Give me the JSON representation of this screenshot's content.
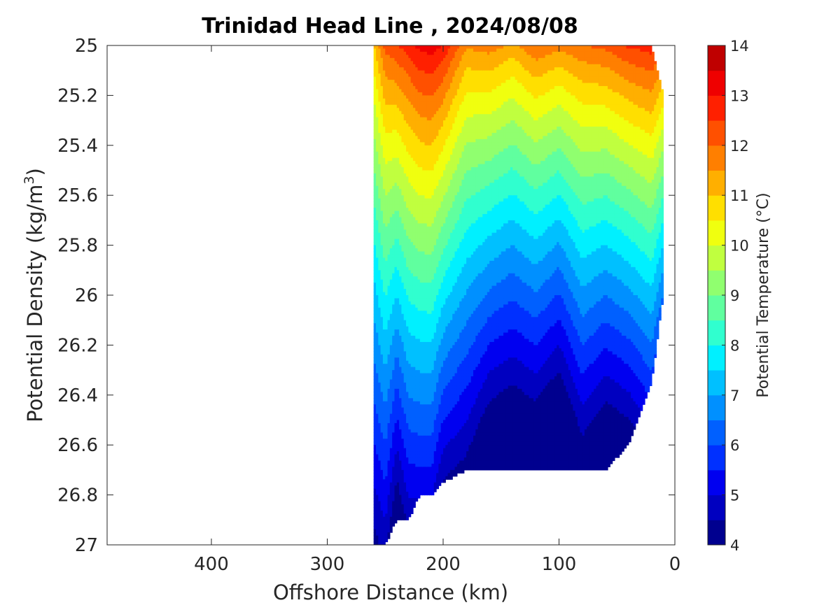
{
  "chart_data": {
    "type": "contour",
    "title": "Trinidad Head Line , 2024/08/08",
    "xlabel": "Offshore Distance (km)",
    "ylabel_text": "Potential Density (kg/m",
    "ylabel_sup": "3",
    "ylabel_close": ")",
    "colorbar_label": "Potential Temperature (°C)",
    "xlim": [
      490,
      0
    ],
    "ylim": [
      25,
      27
    ],
    "x_ticks": [
      "400",
      "300",
      "200",
      "100",
      "0"
    ],
    "x_tick_values": [
      400,
      300,
      200,
      100,
      0
    ],
    "y_ticks": [
      "25",
      "25.2",
      "25.4",
      "25.6",
      "25.8",
      "26",
      "26.2",
      "26.4",
      "26.6",
      "26.8",
      "27"
    ],
    "y_tick_values": [
      25,
      25.2,
      25.4,
      25.6,
      25.8,
      26,
      26.2,
      26.4,
      26.6,
      26.8,
      27
    ],
    "colorbar_ticks": [
      "14",
      "13",
      "12",
      "11",
      "10",
      "9",
      "8",
      "7",
      "6",
      "5",
      "4"
    ],
    "colorbar_tick_values": [
      14,
      13,
      12,
      11,
      10,
      9,
      8,
      7,
      6,
      5,
      4
    ],
    "clim": [
      4,
      14
    ],
    "level_step": 0.5,
    "colormap": [
      "#00008f",
      "#0000c0",
      "#0000f0",
      "#0030ff",
      "#0060ff",
      "#0090ff",
      "#00c0ff",
      "#00f0ff",
      "#30ffcf",
      "#60ff9f",
      "#90ff6f",
      "#c0ff3f",
      "#f0ff0f",
      "#ffdf00",
      "#ffaf00",
      "#ff7f00",
      "#ff5000",
      "#ff2000",
      "#ef0000",
      "#bf0000"
    ],
    "grid": false,
    "stations_x": [
      260,
      250,
      240,
      230,
      220,
      210,
      200,
      180,
      160,
      140,
      120,
      100,
      80,
      60,
      40,
      20,
      10
    ],
    "surface_temperature": [
      11.0,
      12.2,
      12.5,
      12.8,
      13.2,
      13.3,
      13.0,
      11.6,
      11.8,
      11.4,
      12.0,
      11.7,
      12.0,
      12.2,
      12.6,
      12.8,
      12.2
    ],
    "depth_scale": [
      1.0,
      0.95,
      1.1,
      1.0,
      1.0,
      1.0,
      1.1,
      1.15,
      1.3,
      1.35,
      1.3,
      1.4,
      1.2,
      1.3,
      1.25,
      1.15,
      1.3
    ],
    "bottom_density": [
      27.0,
      27.0,
      26.9,
      26.9,
      26.8,
      26.8,
      26.75,
      26.7,
      26.7,
      26.7,
      26.7,
      26.7,
      26.7,
      26.7,
      26.6,
      26.35,
      26.0
    ],
    "top_density": [
      25.0,
      25.0,
      25.0,
      25.0,
      25.0,
      25.0,
      25.0,
      25.0,
      25.0,
      25.0,
      25.0,
      25.0,
      25.0,
      25.0,
      25.0,
      25.0,
      25.2
    ]
  }
}
